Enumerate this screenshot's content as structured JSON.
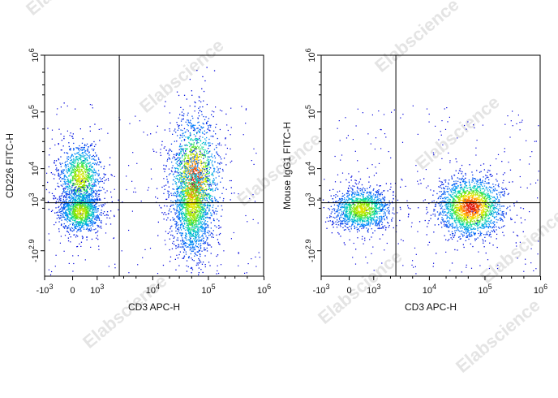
{
  "watermark": "Elabscience",
  "chart_data": [
    {
      "type": "scatter",
      "title": "",
      "xlabel": "CD3 APC-H",
      "ylabel": "CD226 FITC-H",
      "x_tick_labels": [
        "-10^3",
        "0",
        "10^3",
        "10^4",
        "10^5",
        "10^6"
      ],
      "y_tick_labels": [
        "-10^2.9",
        "10^3",
        "10^4",
        "10^5",
        "10^6"
      ],
      "gate": {
        "x": 2500,
        "y": 2500
      },
      "populations": [
        {
          "name": "",
          "x": 300,
          "y": 7000,
          "density": "medium"
        },
        {
          "name": "",
          "x": 300,
          "y": 550,
          "density": "medium"
        },
        {
          "name": "",
          "x": 55000,
          "y": 6000,
          "density": "high"
        },
        {
          "name": "",
          "x": 50000,
          "y": 800,
          "density": "medium"
        }
      ]
    },
    {
      "type": "scatter",
      "title": "",
      "xlabel": "CD3 APC-H",
      "ylabel": "Mouse IgG1 FITC-H",
      "x_tick_labels": [
        "-10^3",
        "0",
        "10^3",
        "10^4",
        "10^5",
        "10^6"
      ],
      "y_tick_labels": [
        "-10^2.9",
        "10^3",
        "10^4",
        "10^5",
        "10^6"
      ],
      "gate": {
        "x": 2500,
        "y": 2500
      },
      "populations": [
        {
          "name": "",
          "x": 500,
          "y": 650,
          "density": "medium"
        },
        {
          "name": "",
          "x": 55000,
          "y": 750,
          "density": "high"
        }
      ]
    }
  ]
}
